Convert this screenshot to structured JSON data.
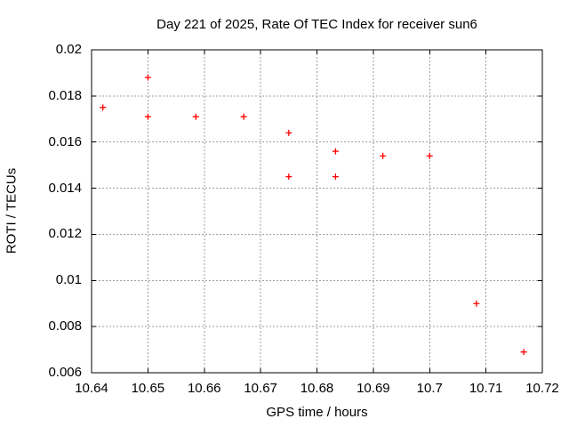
{
  "chart_data": {
    "type": "scatter",
    "title": "Day 221 of 2025, Rate Of TEC Index for receiver sun6",
    "xlabel": "GPS time / hours",
    "ylabel": "ROTI / TECUs",
    "xlim": [
      10.64,
      10.72
    ],
    "ylim": [
      0.006,
      0.02
    ],
    "xtick_values": [
      10.64,
      10.65,
      10.66,
      10.67,
      10.68,
      10.69,
      10.7,
      10.71,
      10.72
    ],
    "xtick_labels": [
      "10.64",
      "10.65",
      "10.66",
      "10.67",
      "10.68",
      "10.69",
      "10.7",
      "10.71",
      "10.72"
    ],
    "ytick_values": [
      0.006,
      0.008,
      0.01,
      0.012,
      0.014,
      0.016,
      0.018,
      0.02
    ],
    "ytick_labels": [
      "0.006",
      "0.008",
      "0.01",
      "0.012",
      "0.014",
      "0.016",
      "0.018",
      "0.02"
    ],
    "grid": true,
    "legend": "none",
    "series": [
      {
        "name": "ROTI",
        "marker": "plus",
        "color": "#ff0000",
        "points": [
          [
            10.642,
            0.0175
          ],
          [
            10.65,
            0.0188
          ],
          [
            10.65,
            0.0171
          ],
          [
            10.6585,
            0.0171
          ],
          [
            10.667,
            0.0171
          ],
          [
            10.675,
            0.0164
          ],
          [
            10.675,
            0.0145
          ],
          [
            10.6833,
            0.0156
          ],
          [
            10.6833,
            0.0145
          ],
          [
            10.6917,
            0.0154
          ],
          [
            10.7,
            0.0154
          ],
          [
            10.7083,
            0.009
          ],
          [
            10.7167,
            0.0069
          ]
        ]
      }
    ],
    "colors": {
      "marker": "#ff0000",
      "grid": "#9e9e9e",
      "border": "#000000",
      "text": "#000000",
      "background": "#ffffff"
    }
  }
}
